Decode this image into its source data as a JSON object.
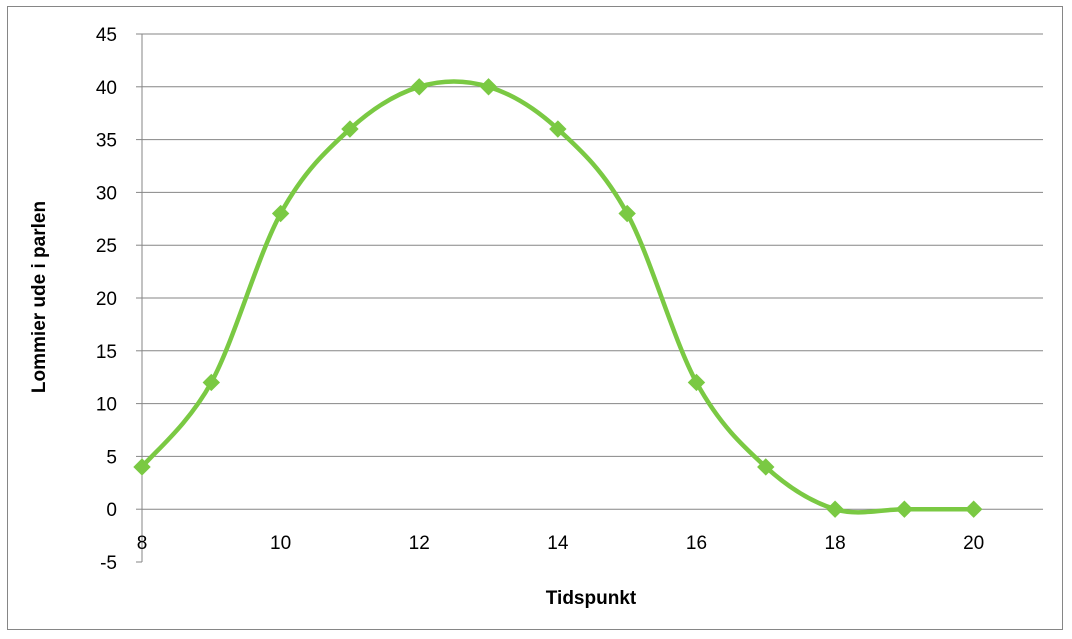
{
  "chart_data": {
    "type": "line",
    "title": "",
    "xlabel": "Tidspunkt",
    "ylabel": "Lommier ude i parlen",
    "xlim": [
      8,
      21
    ],
    "ylim": [
      -5,
      45
    ],
    "x_ticks": [
      8,
      10,
      12,
      14,
      16,
      18,
      20
    ],
    "y_ticks": [
      -5,
      0,
      5,
      10,
      15,
      20,
      25,
      30,
      35,
      40,
      45
    ],
    "grid": "horizontal",
    "legend": "none",
    "smooth": true,
    "series": [
      {
        "x": [
          8,
          9,
          10,
          11,
          12,
          13,
          14,
          15,
          16,
          17,
          18,
          19,
          20
        ],
        "values": [
          4,
          12,
          28,
          36,
          40,
          40,
          36,
          28,
          12,
          4,
          0,
          0,
          0
        ],
        "color": "#7ac943",
        "marker": "diamond"
      }
    ]
  }
}
